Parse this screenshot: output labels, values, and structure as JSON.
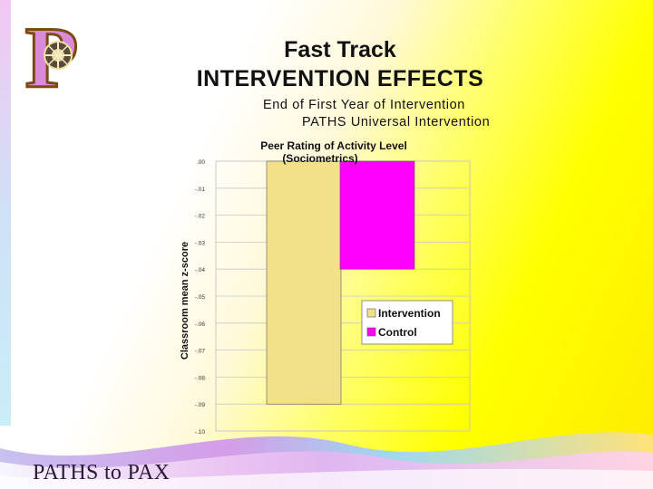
{
  "slide": {
    "title_line1": "Fast Track",
    "title_line2": "INTERVENTION EFFECTS",
    "subtitle_line1": "End of First Year of Intervention",
    "subtitle_line2": "PATHS Universal Intervention",
    "footer": "PATHS to PAX",
    "logo_letter": "P"
  },
  "colors": {
    "intervention": "#f2e189",
    "control": "#ff00ff",
    "logo_fill": "#d98ad8",
    "logo_stroke": "#7a4a10"
  },
  "chart_data": {
    "type": "bar",
    "title": "Peer Rating of Activity Level",
    "subtitle": "(Sociometrics)",
    "xlabel": "",
    "ylabel": "Classroom mean z-score",
    "ylim": [
      -0.1,
      0.0
    ],
    "yticks": [
      ".00",
      "-.01",
      "-.02",
      "-.03",
      "-.04",
      "-.05",
      "-.06",
      "-.07",
      "-.08",
      "-.09",
      "-.10"
    ],
    "grid": true,
    "legend_position": "right",
    "series": [
      {
        "name": "Intervention",
        "values": [
          -0.09
        ]
      },
      {
        "name": "Control",
        "values": [
          -0.04
        ]
      }
    ]
  }
}
